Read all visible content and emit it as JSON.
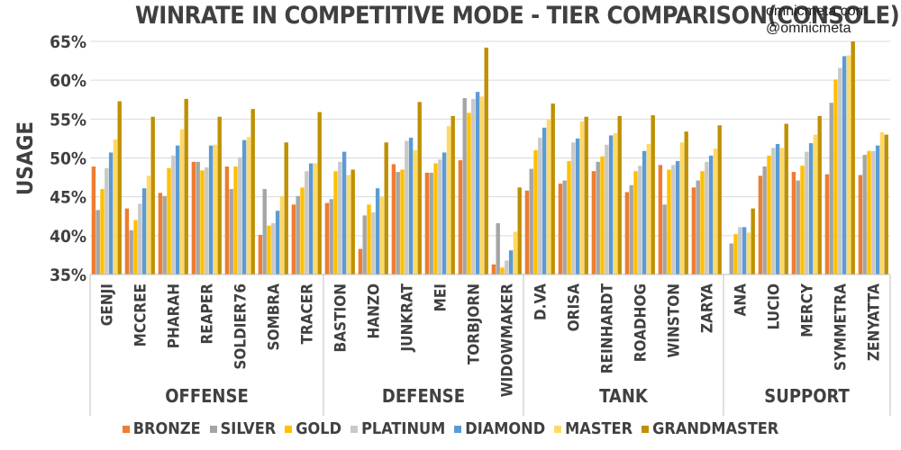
{
  "credits": [
    "omnicmeta.com",
    "@omnicmeta"
  ],
  "chart_data": {
    "type": "bar",
    "title": "WINRATE IN COMPETITIVE MODE - TIER COMPARISON(CONSOLE)",
    "ylabel": "USAGE",
    "xlabel": "",
    "ylim": [
      35,
      65
    ],
    "yticks": [
      "35%",
      "40%",
      "45%",
      "50%",
      "55%",
      "60%",
      "65%"
    ],
    "grid": true,
    "legend_position": "bottom",
    "categories": [
      "GENJI",
      "MCCREE",
      "PHARAH",
      "REAPER",
      "SOLDIER76",
      "SOMBRA",
      "TRACER",
      "BASTION",
      "HANZO",
      "JUNKRAT",
      "MEI",
      "TORBJORN",
      "WIDOWMAKER",
      "D.VA",
      "ORISA",
      "REINHARDT",
      "ROADHOG",
      "WINSTON",
      "ZARYA",
      "ANA",
      "LUCIO",
      "MERCY",
      "SYMMETRA",
      "ZENYATTA"
    ],
    "groups": [
      {
        "label": "OFFENSE",
        "categories": [
          "GENJI",
          "MCCREE",
          "PHARAH",
          "REAPER",
          "SOLDIER76",
          "SOMBRA",
          "TRACER"
        ]
      },
      {
        "label": "DEFENSE",
        "categories": [
          "BASTION",
          "HANZO",
          "JUNKRAT",
          "MEI",
          "TORBJORN",
          "WIDOWMAKER"
        ]
      },
      {
        "label": "TANK",
        "categories": [
          "D.VA",
          "ORISA",
          "REINHARDT",
          "ROADHOG",
          "WINSTON",
          "ZARYA"
        ]
      },
      {
        "label": "SUPPORT",
        "categories": [
          "ANA",
          "LUCIO",
          "MERCY",
          "SYMMETRA",
          "ZENYATTA"
        ]
      }
    ],
    "series": [
      {
        "name": "BRONZE",
        "color": "#ED7D31",
        "values": [
          48.9,
          43.5,
          45.5,
          49.5,
          48.9,
          40.1,
          44.0,
          44.2,
          38.3,
          49.2,
          48.1,
          49.7,
          36.3,
          45.8,
          46.7,
          48.3,
          45.6,
          49.1,
          46.2,
          33.5,
          47.7,
          48.2,
          47.9,
          47.8
        ]
      },
      {
        "name": "SILVER",
        "color": "#A5A5A5",
        "values": [
          43.3,
          40.7,
          45.1,
          49.5,
          46.0,
          46.0,
          45.1,
          44.7,
          42.6,
          48.2,
          48.1,
          57.7,
          41.6,
          48.6,
          47.1,
          49.5,
          46.5,
          44.0,
          47.1,
          39.0,
          48.9,
          47.1,
          57.1,
          50.4
        ]
      },
      {
        "name": "GOLD",
        "color": "#FFC000",
        "values": [
          46.0,
          42.0,
          48.7,
          48.4,
          48.9,
          41.3,
          46.2,
          48.3,
          44.0,
          48.5,
          49.3,
          55.8,
          35.9,
          51.0,
          49.6,
          50.2,
          48.3,
          48.5,
          48.3,
          40.2,
          50.3,
          49.0,
          60.1,
          50.9
        ]
      },
      {
        "name": "PLATINUM",
        "color": "#C9C9C9",
        "values": [
          48.7,
          44.1,
          50.3,
          48.8,
          50.1,
          41.6,
          48.3,
          49.5,
          43.0,
          52.2,
          49.8,
          57.6,
          36.8,
          52.6,
          52.0,
          51.7,
          49.0,
          49.1,
          49.5,
          41.1,
          51.3,
          50.8,
          61.6,
          50.9
        ]
      },
      {
        "name": "DIAMOND",
        "color": "#5B9BD5",
        "values": [
          50.7,
          46.1,
          51.6,
          51.6,
          52.3,
          43.2,
          49.3,
          50.8,
          46.1,
          52.6,
          50.7,
          58.5,
          38.1,
          53.9,
          52.5,
          52.9,
          50.9,
          49.6,
          50.3,
          41.1,
          51.8,
          51.9,
          63.1,
          51.6
        ]
      },
      {
        "name": "MASTER",
        "color": "#FFD966",
        "values": [
          52.4,
          47.7,
          53.7,
          51.7,
          52.7,
          45.1,
          49.3,
          47.8,
          45.0,
          51.0,
          54.1,
          57.9,
          40.5,
          54.9,
          54.7,
          53.2,
          51.8,
          52.0,
          51.2,
          40.4,
          51.3,
          53.0,
          63.2,
          53.3
        ]
      },
      {
        "name": "GRANDMASTER",
        "color": "#BF9000",
        "values": [
          57.3,
          55.3,
          57.6,
          55.3,
          56.3,
          52.0,
          55.9,
          48.5,
          52.0,
          57.2,
          55.4,
          64.2,
          46.2,
          57.0,
          55.3,
          55.4,
          55.5,
          53.4,
          54.2,
          43.5,
          54.4,
          55.4,
          65.0,
          53.0
        ]
      }
    ]
  }
}
